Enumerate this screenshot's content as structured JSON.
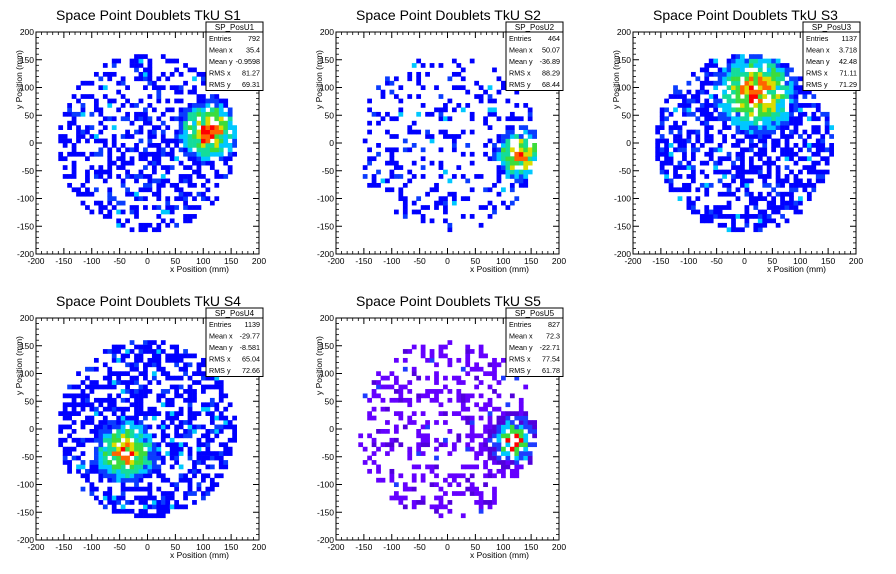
{
  "chart_data": [
    {
      "type": "heatmap",
      "title": "Space Point Doublets TkU S1",
      "xlabel": "x Position (mm)",
      "ylabel": "y Position (mm)",
      "xlim": [
        -200,
        200
      ],
      "ylim": [
        -200,
        200
      ],
      "xticks": [
        "-200",
        "-150",
        "-100",
        "-50",
        "0",
        "50",
        "100",
        "150",
        "200"
      ],
      "yticks": [
        "-200",
        "-150",
        "-100",
        "-50",
        "0",
        "50",
        "100",
        "150",
        "200"
      ],
      "stats": {
        "name": "SP_PosU1",
        "rows": [
          [
            "Entries",
            "792"
          ],
          [
            "Mean x",
            "35.4"
          ],
          [
            "Mean y",
            "-0.9598"
          ],
          [
            "RMS x",
            "81.27"
          ],
          [
            "RMS y",
            "69.31"
          ]
        ]
      },
      "palette": "rainbow",
      "seed": 11,
      "density": {
        "hot_x": 110,
        "hot_y": 20,
        "hot_r": 60,
        "fill": 0.42,
        "hot_fill": 0.85
      }
    },
    {
      "type": "heatmap",
      "title": "Space Point Doublets TkU S2",
      "xlabel": "x Position (mm)",
      "ylabel": "y Position (mm)",
      "xlim": [
        -200,
        200
      ],
      "ylim": [
        -200,
        200
      ],
      "xticks": [
        "-200",
        "-150",
        "-100",
        "-50",
        "0",
        "50",
        "100",
        "150",
        "200"
      ],
      "yticks": [
        "-200",
        "-150",
        "-100",
        "-50",
        "0",
        "50",
        "100",
        "150",
        "200"
      ],
      "stats": {
        "name": "SP_PosU2",
        "rows": [
          [
            "Entries",
            "464"
          ],
          [
            "Mean x",
            "50.07"
          ],
          [
            "Mean y",
            "-36.89"
          ],
          [
            "RMS x",
            "88.29"
          ],
          [
            "RMS y",
            "68.44"
          ]
        ]
      },
      "palette": "rainbow",
      "seed": 23,
      "density": {
        "hot_x": 130,
        "hot_y": -20,
        "hot_r": 50,
        "fill": 0.22,
        "hot_fill": 0.8
      }
    },
    {
      "type": "heatmap",
      "title": "Space Point Doublets TkU S3",
      "xlabel": "x Position (mm)",
      "ylabel": "y Position (mm)",
      "xlim": [
        -200,
        200
      ],
      "ylim": [
        -200,
        200
      ],
      "xticks": [
        "-200",
        "-150",
        "-100",
        "-50",
        "0",
        "50",
        "100",
        "150",
        "200"
      ],
      "yticks": [
        "-200",
        "-150",
        "-100",
        "-50",
        "0",
        "50",
        "100",
        "150",
        "200"
      ],
      "stats": {
        "name": "SP_PosU3",
        "rows": [
          [
            "Entries",
            "1137"
          ],
          [
            "Mean x",
            "3.718"
          ],
          [
            "Mean y",
            "42.48"
          ],
          [
            "RMS x",
            "71.11"
          ],
          [
            "RMS y",
            "71.29"
          ]
        ]
      },
      "palette": "rainbow",
      "seed": 37,
      "density": {
        "hot_x": 20,
        "hot_y": 90,
        "hot_r": 80,
        "fill": 0.5,
        "hot_fill": 0.85
      }
    },
    {
      "type": "heatmap",
      "title": "Space Point Doublets TkU S4",
      "xlabel": "x Position (mm)",
      "ylabel": "y Position (mm)",
      "xlim": [
        -200,
        200
      ],
      "ylim": [
        -200,
        200
      ],
      "xticks": [
        "-200",
        "-150",
        "-100",
        "-50",
        "0",
        "50",
        "100",
        "150",
        "200"
      ],
      "yticks": [
        "-200",
        "-150",
        "-100",
        "-50",
        "0",
        "50",
        "100",
        "150",
        "200"
      ],
      "stats": {
        "name": "SP_PosU4",
        "rows": [
          [
            "Entries",
            "1139"
          ],
          [
            "Mean x",
            "-29.77"
          ],
          [
            "Mean y",
            "-8.581"
          ],
          [
            "RMS x",
            "65.04"
          ],
          [
            "RMS y",
            "72.66"
          ]
        ]
      },
      "palette": "rainbow",
      "seed": 53,
      "density": {
        "hot_x": -40,
        "hot_y": -40,
        "hot_r": 60,
        "fill": 0.52,
        "hot_fill": 0.9
      }
    },
    {
      "type": "heatmap",
      "title": "Space Point Doublets TkU S5",
      "xlabel": "x Position (mm)",
      "ylabel": "y Position (mm)",
      "xlim": [
        -200,
        200
      ],
      "ylim": [
        -200,
        200
      ],
      "xticks": [
        "-200",
        "-150",
        "-100",
        "-50",
        "0",
        "50",
        "100",
        "150",
        "200"
      ],
      "yticks": [
        "-200",
        "-150",
        "-100",
        "-50",
        "0",
        "50",
        "100",
        "150",
        "200"
      ],
      "stats": {
        "name": "SP_PosU5",
        "rows": [
          [
            "Entries",
            "827"
          ],
          [
            "Mean x",
            "72.3"
          ],
          [
            "Mean y",
            "-22.71"
          ],
          [
            "RMS x",
            "77.54"
          ],
          [
            "RMS y",
            "61.78"
          ]
        ]
      },
      "palette": "violet",
      "seed": 71,
      "density": {
        "hot_x": 120,
        "hot_y": -20,
        "hot_r": 55,
        "fill": 0.3,
        "hot_fill": 0.8
      }
    }
  ],
  "colors": {
    "rainbow": [
      "#0000ff",
      "#0a3cff",
      "#00c8ff",
      "#14dc9a",
      "#3cdc3c",
      "#dcdc00",
      "#ff6400",
      "#ff0000"
    ],
    "violet": [
      "#6400ff",
      "#5000dc",
      "#1e3cff",
      "#00c8ff",
      "#3cdc3c",
      "#ff0000"
    ]
  }
}
